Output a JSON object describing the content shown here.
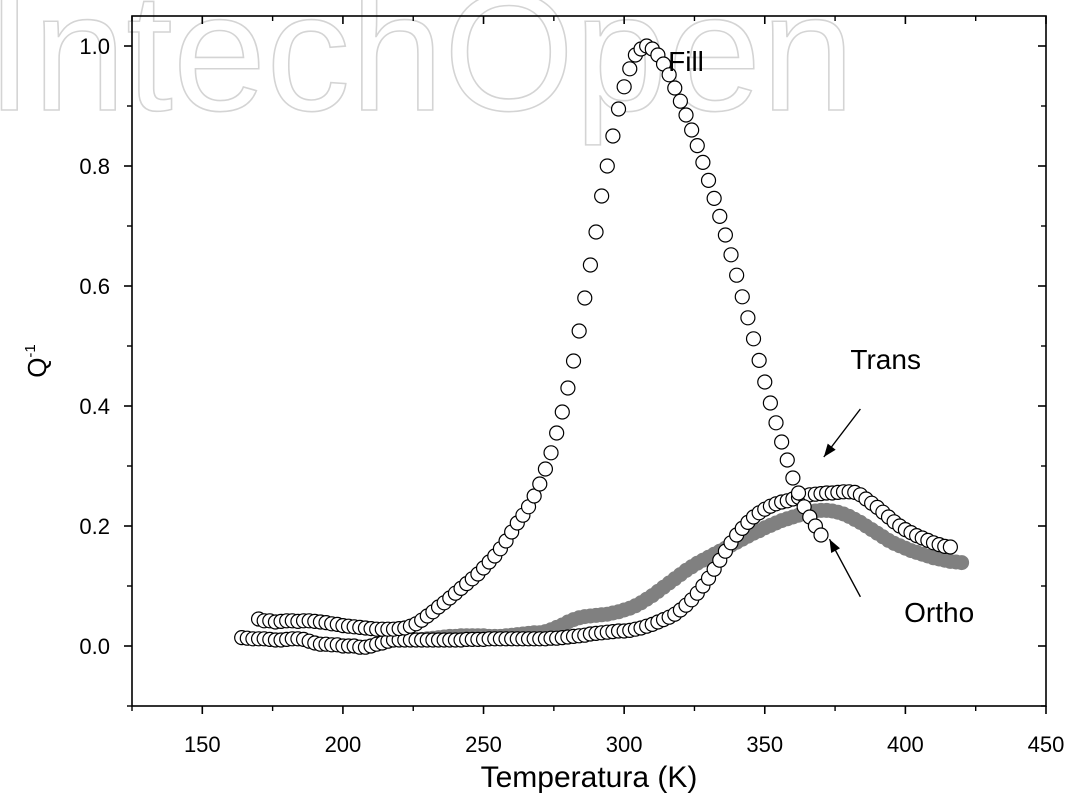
{
  "watermark": "IntechOpen",
  "chart_data": {
    "type": "scatter",
    "xlabel": "Temperatura (K)",
    "ylabel": "Q",
    "ylabel_sup": "-1",
    "xlim": [
      125,
      450
    ],
    "ylim": [
      -0.1,
      1.05
    ],
    "xticks": [
      150,
      200,
      250,
      300,
      350,
      400,
      450
    ],
    "yticks": [
      0.0,
      0.2,
      0.4,
      0.6,
      0.8,
      1.0
    ],
    "xtick_labels": [
      "150",
      "200",
      "250",
      "300",
      "350",
      "400",
      "450"
    ],
    "ytick_labels": [
      "0.0",
      "0.2",
      "0.4",
      "0.6",
      "0.8",
      "1.0"
    ],
    "grid": false,
    "legend": "none",
    "series": [
      {
        "name": "Fill",
        "marker": "open-circle",
        "color": "#000000",
        "x": [
          170,
          172,
          174,
          176,
          178,
          180,
          182,
          184,
          186,
          188,
          190,
          192,
          194,
          196,
          198,
          200,
          202,
          204,
          206,
          208,
          210,
          212,
          214,
          216,
          218,
          220,
          222,
          224,
          226,
          228,
          230,
          232,
          234,
          236,
          238,
          240,
          242,
          244,
          246,
          248,
          250,
          252,
          254,
          256,
          258,
          260,
          262,
          264,
          266,
          268,
          270,
          272,
          274,
          276,
          278,
          280,
          282,
          284,
          286,
          288,
          290,
          292,
          294,
          296,
          298,
          300,
          302,
          304,
          306,
          308,
          310,
          312,
          314,
          316,
          318,
          320,
          322,
          324,
          326,
          328,
          330,
          332,
          334,
          336,
          338,
          340,
          342,
          344,
          346,
          348,
          350,
          352,
          354,
          356,
          358,
          360,
          362,
          364,
          366,
          368,
          370
        ],
        "y": [
          0.045,
          0.042,
          0.042,
          0.04,
          0.041,
          0.042,
          0.042,
          0.041,
          0.042,
          0.042,
          0.041,
          0.04,
          0.039,
          0.037,
          0.036,
          0.034,
          0.033,
          0.032,
          0.031,
          0.03,
          0.029,
          0.028,
          0.028,
          0.028,
          0.028,
          0.029,
          0.03,
          0.033,
          0.037,
          0.043,
          0.05,
          0.057,
          0.065,
          0.072,
          0.08,
          0.088,
          0.096,
          0.104,
          0.112,
          0.12,
          0.13,
          0.14,
          0.15,
          0.162,
          0.175,
          0.19,
          0.205,
          0.218,
          0.232,
          0.25,
          0.27,
          0.295,
          0.322,
          0.355,
          0.39,
          0.43,
          0.475,
          0.525,
          0.58,
          0.635,
          0.69,
          0.75,
          0.8,
          0.85,
          0.895,
          0.932,
          0.962,
          0.985,
          0.995,
          1.0,
          0.995,
          0.985,
          0.97,
          0.952,
          0.93,
          0.908,
          0.885,
          0.86,
          0.834,
          0.806,
          0.776,
          0.746,
          0.716,
          0.685,
          0.652,
          0.618,
          0.582,
          0.547,
          0.512,
          0.476,
          0.44,
          0.405,
          0.372,
          0.34,
          0.31,
          0.28,
          0.255,
          0.232,
          0.215,
          0.2,
          0.185
        ]
      },
      {
        "name": "Trans",
        "marker": "open-circle",
        "color": "#000000",
        "x": [
          164,
          166,
          168,
          170,
          172,
          174,
          176,
          178,
          180,
          182,
          184,
          186,
          188,
          190,
          192,
          194,
          196,
          198,
          200,
          202,
          204,
          206,
          208,
          210,
          212,
          214,
          216,
          218,
          220,
          222,
          224,
          226,
          228,
          230,
          232,
          234,
          236,
          238,
          240,
          242,
          244,
          246,
          248,
          250,
          252,
          254,
          256,
          258,
          260,
          262,
          264,
          266,
          268,
          270,
          272,
          274,
          276,
          278,
          280,
          282,
          284,
          286,
          288,
          290,
          292,
          294,
          296,
          298,
          300,
          302,
          304,
          306,
          308,
          310,
          312,
          314,
          316,
          318,
          320,
          322,
          324,
          326,
          328,
          330,
          332,
          334,
          336,
          338,
          340,
          342,
          344,
          346,
          348,
          350,
          352,
          354,
          356,
          358,
          360,
          362,
          364,
          366,
          368,
          370,
          372,
          374,
          376,
          378,
          380,
          382,
          384,
          386,
          388,
          390,
          392,
          394,
          396,
          398,
          400,
          402,
          404,
          406,
          408,
          410,
          412,
          414,
          416
        ],
        "y": [
          0.014,
          0.013,
          0.012,
          0.012,
          0.012,
          0.011,
          0.01,
          0.01,
          0.011,
          0.012,
          0.012,
          0.011,
          0.008,
          0.005,
          0.003,
          0.003,
          0.002,
          0.002,
          0.0,
          0.0,
          0.0,
          -0.002,
          -0.002,
          0.0,
          0.003,
          0.005,
          0.008,
          0.01,
          0.01,
          0.01,
          0.01,
          0.01,
          0.01,
          0.01,
          0.01,
          0.01,
          0.01,
          0.01,
          0.01,
          0.01,
          0.011,
          0.011,
          0.011,
          0.011,
          0.012,
          0.012,
          0.012,
          0.012,
          0.012,
          0.012,
          0.012,
          0.012,
          0.012,
          0.012,
          0.012,
          0.013,
          0.013,
          0.014,
          0.015,
          0.016,
          0.017,
          0.018,
          0.02,
          0.021,
          0.022,
          0.023,
          0.024,
          0.025,
          0.025,
          0.026,
          0.028,
          0.03,
          0.033,
          0.036,
          0.04,
          0.044,
          0.048,
          0.053,
          0.06,
          0.068,
          0.077,
          0.088,
          0.1,
          0.113,
          0.128,
          0.143,
          0.158,
          0.172,
          0.185,
          0.196,
          0.206,
          0.215,
          0.222,
          0.228,
          0.233,
          0.237,
          0.24,
          0.242,
          0.245,
          0.248,
          0.25,
          0.252,
          0.253,
          0.254,
          0.255,
          0.255,
          0.256,
          0.257,
          0.257,
          0.256,
          0.252,
          0.245,
          0.238,
          0.231,
          0.223,
          0.215,
          0.207,
          0.2,
          0.194,
          0.189,
          0.184,
          0.18,
          0.176,
          0.172,
          0.169,
          0.166,
          0.165
        ]
      },
      {
        "name": "Ortho",
        "marker": "filled-circle",
        "color": "#808080",
        "x": [
          224,
          226,
          228,
          230,
          232,
          234,
          236,
          238,
          240,
          242,
          244,
          246,
          248,
          250,
          252,
          254,
          256,
          258,
          260,
          262,
          264,
          266,
          268,
          270,
          272,
          274,
          276,
          278,
          280,
          282,
          284,
          286,
          288,
          290,
          292,
          294,
          296,
          298,
          300,
          302,
          304,
          306,
          308,
          310,
          312,
          314,
          316,
          318,
          320,
          322,
          324,
          326,
          328,
          330,
          332,
          334,
          336,
          338,
          340,
          342,
          344,
          346,
          348,
          350,
          352,
          354,
          356,
          358,
          360,
          362,
          364,
          366,
          368,
          370,
          372,
          374,
          376,
          378,
          380,
          382,
          384,
          386,
          388,
          390,
          392,
          394,
          396,
          398,
          400,
          402,
          404,
          406,
          408,
          410,
          412,
          414,
          416,
          418,
          420
        ],
        "y": [
          0.01,
          0.01,
          0.011,
          0.012,
          0.013,
          0.014,
          0.015,
          0.016,
          0.016,
          0.017,
          0.017,
          0.017,
          0.017,
          0.017,
          0.016,
          0.016,
          0.016,
          0.017,
          0.018,
          0.019,
          0.02,
          0.021,
          0.022,
          0.022,
          0.024,
          0.027,
          0.031,
          0.035,
          0.04,
          0.044,
          0.047,
          0.049,
          0.05,
          0.051,
          0.052,
          0.053,
          0.055,
          0.057,
          0.06,
          0.063,
          0.067,
          0.072,
          0.078,
          0.084,
          0.091,
          0.098,
          0.105,
          0.112,
          0.119,
          0.126,
          0.132,
          0.138,
          0.143,
          0.148,
          0.153,
          0.158,
          0.163,
          0.168,
          0.173,
          0.178,
          0.183,
          0.188,
          0.192,
          0.197,
          0.201,
          0.205,
          0.209,
          0.212,
          0.215,
          0.218,
          0.221,
          0.223,
          0.225,
          0.226,
          0.226,
          0.225,
          0.223,
          0.22,
          0.216,
          0.211,
          0.206,
          0.2,
          0.194,
          0.188,
          0.182,
          0.176,
          0.171,
          0.167,
          0.163,
          0.159,
          0.156,
          0.153,
          0.15,
          0.147,
          0.145,
          0.143,
          0.141,
          0.14,
          0.139
        ]
      }
    ],
    "annotations": [
      {
        "text": "Fill",
        "x": 322,
        "y": 0.958
      },
      {
        "text": "Trans",
        "x": 393,
        "y": 0.462
      },
      {
        "text": "Ortho",
        "x": 412,
        "y": 0.04
      }
    ],
    "arrows": [
      {
        "target": "Trans",
        "from": [
          384,
          0.395
        ],
        "to": [
          371,
          0.315
        ]
      },
      {
        "target": "Ortho",
        "from": [
          384,
          0.082
        ],
        "to": [
          373,
          0.178
        ]
      }
    ]
  }
}
